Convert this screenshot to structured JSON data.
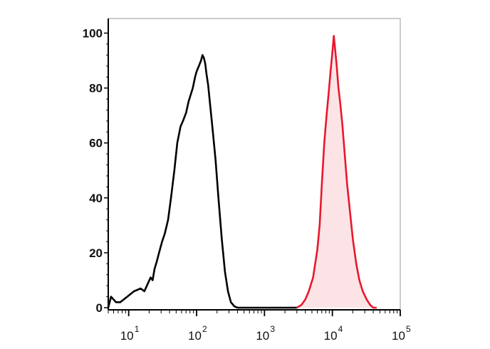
{
  "chart_data": {
    "type": "area",
    "title": "",
    "xlabel": "",
    "ylabel": "",
    "xscale": "log",
    "xlim": [
      5,
      100000
    ],
    "ylim": [
      0,
      100
    ],
    "grid": false,
    "legend": "none",
    "y_ticks": [
      "0",
      "20",
      "40",
      "60",
      "80",
      "100"
    ],
    "x_ticks": [
      {
        "value": 10,
        "base": "10",
        "exp": "1"
      },
      {
        "value": 100,
        "base": "10",
        "exp": "2"
      },
      {
        "value": 1000,
        "base": "10",
        "exp": "3"
      },
      {
        "value": 10000,
        "base": "10",
        "exp": "4"
      },
      {
        "value": 100000,
        "base": "10",
        "exp": "5"
      }
    ],
    "series": [
      {
        "color": "#000000",
        "fill": "none",
        "x": [
          5,
          5.5,
          6.5,
          7.5,
          9.5,
          12,
          15,
          17,
          18.5,
          21,
          22.5,
          24,
          26,
          28,
          31,
          34,
          38,
          42,
          47,
          52,
          58,
          63,
          70,
          76,
          83,
          88,
          95,
          100,
          108,
          116,
          122,
          128,
          134,
          140,
          148,
          158,
          172,
          190,
          210,
          235,
          262,
          290,
          320,
          360,
          400,
          460,
          600,
          1000,
          2000,
          3000
        ],
        "y": [
          0,
          4,
          2,
          2,
          4,
          6,
          7,
          6,
          8,
          11,
          10,
          14,
          17,
          20,
          24,
          27,
          32,
          40,
          50,
          60,
          66,
          68,
          71,
          75,
          78,
          80,
          84,
          86,
          88,
          90,
          92,
          91,
          89,
          85,
          81,
          74,
          65,
          54,
          40,
          25,
          13,
          6,
          2,
          0.5,
          0,
          0,
          0,
          0,
          0,
          0
        ]
      },
      {
        "color": "#e8182c",
        "fill": "#fce4e6",
        "x": [
          3000,
          3500,
          4000,
          4500,
          5200,
          6000,
          6500,
          7000,
          7600,
          8200,
          8800,
          9400,
          10000,
          10500,
          11000,
          11600,
          12300,
          13000,
          14000,
          15200,
          16500,
          18000,
          20000,
          22500,
          25000,
          28000,
          32000,
          36000,
          40000,
          45000
        ],
        "y": [
          0,
          1,
          3,
          6,
          11,
          21,
          30,
          45,
          60,
          70,
          78,
          86,
          93,
          99,
          94,
          88,
          80,
          75,
          67,
          56,
          45,
          36,
          25,
          16,
          10,
          6,
          3,
          1,
          0,
          0
        ]
      }
    ]
  }
}
